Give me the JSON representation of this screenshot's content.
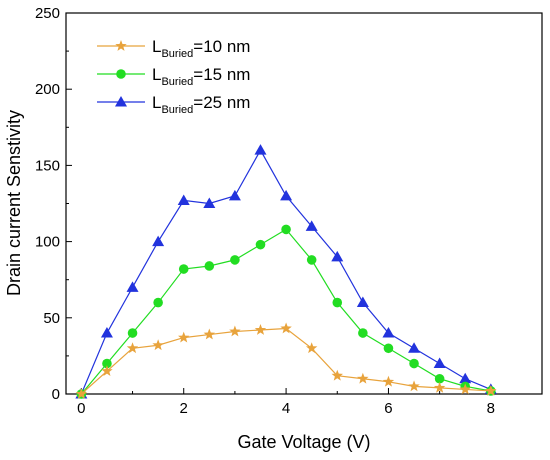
{
  "chart_data": {
    "type": "line",
    "xlabel": "Gate Voltage (V)",
    "ylabel": "Drain current Senstivity",
    "xlim": [
      -0.3,
      9
    ],
    "ylim": [
      0,
      250
    ],
    "xticks": [
      "0",
      "2",
      "4",
      "6",
      "8"
    ],
    "yticks": [
      "0",
      "50",
      "100",
      "150",
      "200",
      "250"
    ],
    "grid": false,
    "legend_position": "top-left",
    "x": [
      0,
      0.5,
      1,
      1.5,
      2,
      2.5,
      3,
      3.5,
      4,
      4.5,
      5,
      5.5,
      6,
      6.5,
      7,
      7.5,
      8
    ],
    "series": [
      {
        "name": "L",
        "name_subscript": "Buried",
        "name_suffix": "=10 nm",
        "color": "#e8a33c",
        "marker": "star",
        "values": [
          0,
          15,
          30,
          32,
          37,
          39,
          41,
          42,
          43,
          30,
          12,
          10,
          8,
          5,
          4,
          3,
          2
        ]
      },
      {
        "name": "L",
        "name_subscript": "Buried",
        "name_suffix": "=15 nm",
        "color": "#22dd22",
        "marker": "circle",
        "values": [
          0,
          20,
          40,
          60,
          82,
          84,
          88,
          98,
          108,
          88,
          60,
          40,
          30,
          20,
          10,
          5,
          2
        ]
      },
      {
        "name": "L",
        "name_subscript": "Buried",
        "name_suffix": "=25 nm",
        "color": "#2233dd",
        "marker": "triangle",
        "values": [
          0,
          40,
          70,
          100,
          127,
          125,
          130,
          160,
          130,
          110,
          90,
          60,
          40,
          30,
          20,
          10,
          3
        ]
      }
    ]
  }
}
